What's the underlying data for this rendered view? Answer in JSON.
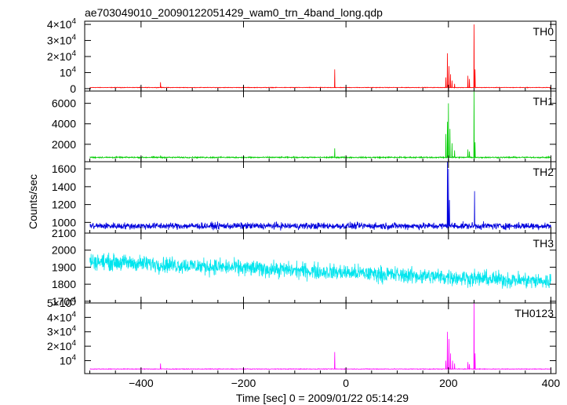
{
  "chart_data": {
    "type": "line",
    "title": "ae703049010_20090122051429_wam0_trn_4band_long.qdp",
    "xlabel": "Time [sec] 0 = 2009/01/22 05:14:29",
    "ylabel": "Counts/sec",
    "xlim": [
      -510,
      410
    ],
    "x_ticks": [
      -400,
      -200,
      0,
      200,
      400
    ],
    "x_tick_labels": [
      "−400",
      "−200",
      "0",
      "200",
      "400"
    ],
    "grid": false,
    "panels": [
      {
        "name": "TH0",
        "color": "#ff0000",
        "ylim": [
          -1500,
          42000
        ],
        "ticks": [
          0,
          10000,
          20000,
          30000,
          40000
        ],
        "tick_labels": [
          {
            "mant": "0",
            "exp": ""
          },
          {
            "mant": "10",
            "exp": "4"
          },
          {
            "mant": "2×10",
            "exp": "4"
          },
          {
            "mant": "3×10",
            "exp": "4"
          },
          {
            "mant": "4×10",
            "exp": "4"
          }
        ],
        "baseline": 700,
        "noise": 250,
        "spikes": [
          [
            -362,
            4000
          ],
          [
            -22,
            12000
          ],
          [
            195,
            7000
          ],
          [
            198,
            22000
          ],
          [
            201,
            14000
          ],
          [
            204,
            9000
          ],
          [
            207,
            5000
          ],
          [
            212,
            3000
          ],
          [
            238,
            8000
          ],
          [
            241,
            6000
          ],
          [
            250,
            40000
          ],
          [
            252,
            12000
          ]
        ]
      },
      {
        "name": "TH1",
        "color": "#00cc00",
        "ylim": [
          300,
          7200
        ],
        "ticks": [
          2000,
          4000,
          6000
        ],
        "tick_labels": [
          {
            "mant": "2000",
            "exp": ""
          },
          {
            "mant": "4000",
            "exp": ""
          },
          {
            "mant": "6000",
            "exp": ""
          }
        ],
        "baseline": 720,
        "noise": 90,
        "spikes": [
          [
            -362,
            900
          ],
          [
            -22,
            1600
          ],
          [
            195,
            3000
          ],
          [
            198,
            4200
          ],
          [
            200,
            6000
          ],
          [
            203,
            3500
          ],
          [
            207,
            2100
          ],
          [
            212,
            1400
          ],
          [
            238,
            1500
          ],
          [
            241,
            1300
          ],
          [
            250,
            7200
          ],
          [
            252,
            2200
          ]
        ]
      },
      {
        "name": "TH2",
        "color": "#0000dd",
        "ylim": [
          880,
          1680
        ],
        "ticks": [
          1000,
          1200,
          1400,
          1600
        ],
        "tick_labels": [
          {
            "mant": "1000",
            "exp": ""
          },
          {
            "mant": "1200",
            "exp": ""
          },
          {
            "mant": "1400",
            "exp": ""
          },
          {
            "mant": "1600",
            "exp": ""
          }
        ],
        "baseline": 960,
        "noise": 55,
        "spikes": [
          [
            198,
            1700
          ],
          [
            200,
            1600
          ],
          [
            202,
            1250
          ],
          [
            251,
            1350
          ]
        ]
      },
      {
        "name": "TH3",
        "color": "#00e5ee",
        "ylim": [
          1690,
          2100
        ],
        "ticks": [
          1700,
          1800,
          1900,
          2000,
          2100
        ],
        "tick_labels": [
          {
            "mant": "1700",
            "exp": ""
          },
          {
            "mant": "1800",
            "exp": ""
          },
          {
            "mant": "1900",
            "exp": ""
          },
          {
            "mant": "2000",
            "exp": ""
          },
          {
            "mant": "2100",
            "exp": ""
          }
        ],
        "baseline_start": 1935,
        "baseline_end": 1815,
        "noise": 70,
        "spikes": []
      },
      {
        "name": "TH0123",
        "color": "#ff00ff",
        "ylim": [
          1000,
          50000
        ],
        "ticks": [
          10000,
          20000,
          30000,
          40000,
          50000
        ],
        "tick_labels": [
          {
            "mant": "10",
            "exp": "4"
          },
          {
            "mant": "2×10",
            "exp": "4"
          },
          {
            "mant": "3×10",
            "exp": "4"
          },
          {
            "mant": "4×10",
            "exp": "4"
          },
          {
            "mant": "5×10",
            "exp": "4"
          }
        ],
        "baseline": 4200,
        "noise": 300,
        "spikes": [
          [
            -362,
            8000
          ],
          [
            -22,
            16000
          ],
          [
            195,
            10000
          ],
          [
            198,
            30000
          ],
          [
            201,
            25000
          ],
          [
            204,
            15000
          ],
          [
            208,
            10000
          ],
          [
            212,
            8000
          ],
          [
            238,
            9000
          ],
          [
            241,
            7500
          ],
          [
            250,
            50000
          ],
          [
            252,
            15000
          ]
        ]
      }
    ]
  }
}
